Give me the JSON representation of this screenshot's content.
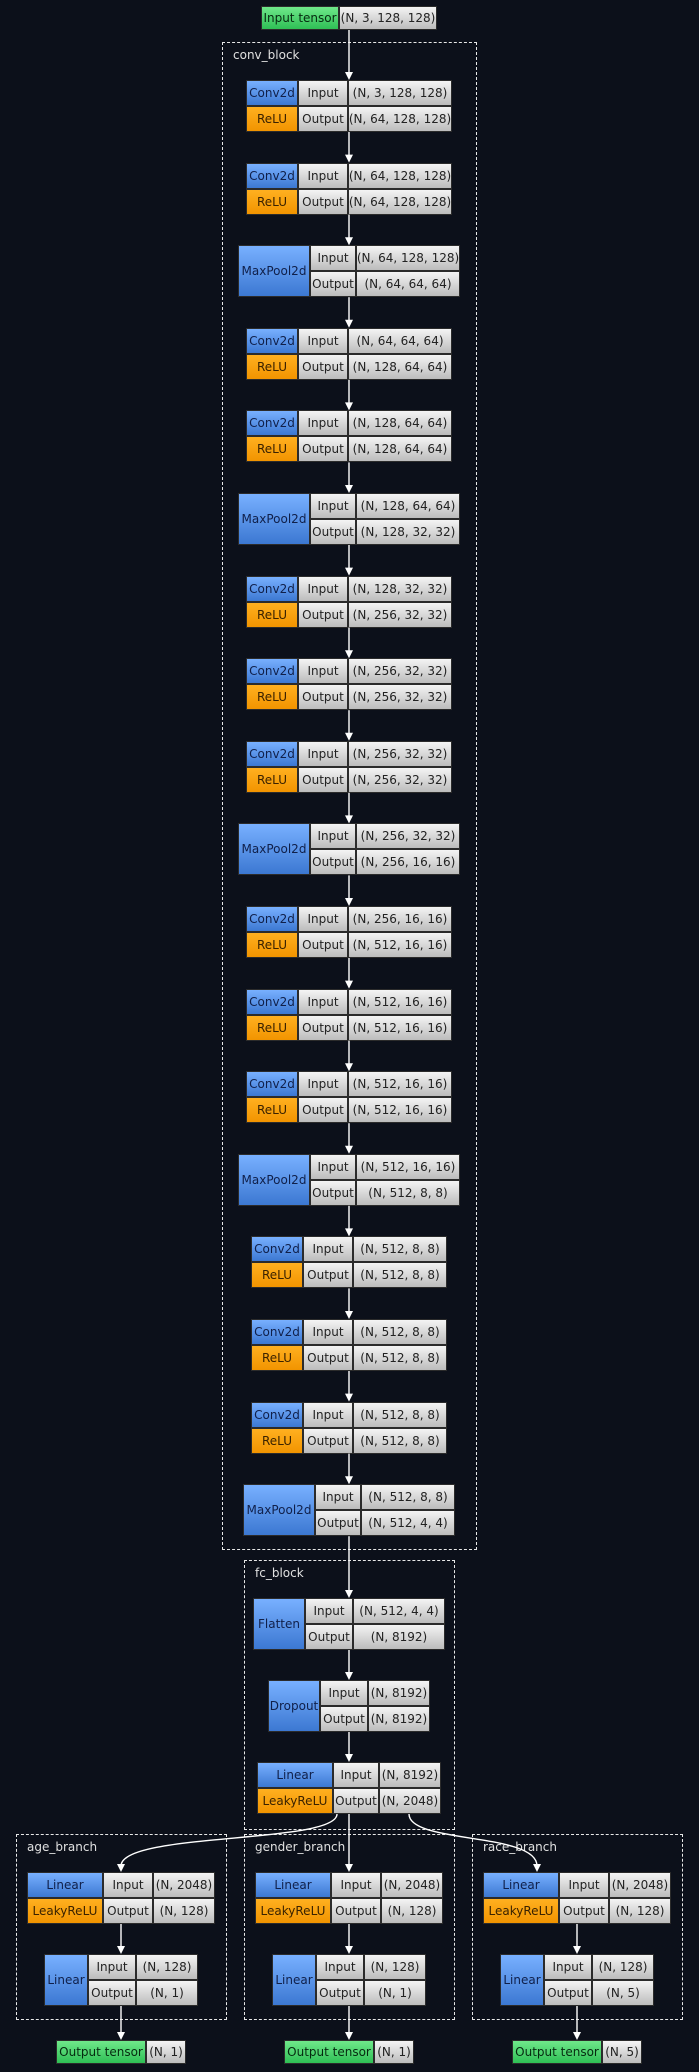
{
  "input_tensor": {
    "label": "Input tensor",
    "shape": "(N, 3, 128, 128)"
  },
  "clusters": {
    "conv_block": "conv_block",
    "fc_block": "fc_block",
    "age_branch": "age_branch",
    "gender_branch": "gender_branch",
    "race_branch": "race_branch"
  },
  "labels": {
    "input": "Input",
    "output": "Output"
  },
  "conv_layers": [
    {
      "layer": "Conv2d",
      "act": "ReLU",
      "in": "(N, 3, 128, 128)",
      "out": "(N, 64, 128, 128)"
    },
    {
      "layer": "Conv2d",
      "act": "ReLU",
      "in": "(N, 64, 128, 128)",
      "out": "(N, 64, 128, 128)"
    },
    {
      "layer": "MaxPool2d",
      "in": "(N, 64, 128, 128)",
      "out": "(N, 64, 64, 64)"
    },
    {
      "layer": "Conv2d",
      "act": "ReLU",
      "in": "(N, 64, 64, 64)",
      "out": "(N, 128, 64, 64)"
    },
    {
      "layer": "Conv2d",
      "act": "ReLU",
      "in": "(N, 128, 64, 64)",
      "out": "(N, 128, 64, 64)"
    },
    {
      "layer": "MaxPool2d",
      "in": "(N, 128, 64, 64)",
      "out": "(N, 128, 32, 32)"
    },
    {
      "layer": "Conv2d",
      "act": "ReLU",
      "in": "(N, 128, 32, 32)",
      "out": "(N, 256, 32, 32)"
    },
    {
      "layer": "Conv2d",
      "act": "ReLU",
      "in": "(N, 256, 32, 32)",
      "out": "(N, 256, 32, 32)"
    },
    {
      "layer": "Conv2d",
      "act": "ReLU",
      "in": "(N, 256, 32, 32)",
      "out": "(N, 256, 32, 32)"
    },
    {
      "layer": "MaxPool2d",
      "in": "(N, 256, 32, 32)",
      "out": "(N, 256, 16, 16)"
    },
    {
      "layer": "Conv2d",
      "act": "ReLU",
      "in": "(N, 256, 16, 16)",
      "out": "(N, 512, 16, 16)"
    },
    {
      "layer": "Conv2d",
      "act": "ReLU",
      "in": "(N, 512, 16, 16)",
      "out": "(N, 512, 16, 16)"
    },
    {
      "layer": "Conv2d",
      "act": "ReLU",
      "in": "(N, 512, 16, 16)",
      "out": "(N, 512, 16, 16)"
    },
    {
      "layer": "MaxPool2d",
      "in": "(N, 512, 16, 16)",
      "out": "(N, 512, 8, 8)"
    },
    {
      "layer": "Conv2d",
      "act": "ReLU",
      "in": "(N, 512, 8, 8)",
      "out": "(N, 512, 8, 8)"
    },
    {
      "layer": "Conv2d",
      "act": "ReLU",
      "in": "(N, 512, 8, 8)",
      "out": "(N, 512, 8, 8)"
    },
    {
      "layer": "Conv2d",
      "act": "ReLU",
      "in": "(N, 512, 8, 8)",
      "out": "(N, 512, 8, 8)"
    },
    {
      "layer": "MaxPool2d",
      "in": "(N, 512, 8, 8)",
      "out": "(N, 512, 4, 4)"
    }
  ],
  "fc_layers": [
    {
      "layer": "Flatten",
      "in": "(N, 512, 4, 4)",
      "out": "(N, 8192)"
    },
    {
      "layer": "Dropout",
      "in": "(N, 8192)",
      "out": "(N, 8192)"
    },
    {
      "layer": "Linear",
      "act": "LeakyReLU",
      "in": "(N, 8192)",
      "out": "(N, 2048)"
    }
  ],
  "branches": [
    {
      "name": "age_branch",
      "layers": [
        {
          "layer": "Linear",
          "act": "LeakyReLU",
          "in": "(N, 2048)",
          "out": "(N, 128)"
        },
        {
          "layer": "Linear",
          "in": "(N, 128)",
          "out": "(N, 1)"
        }
      ],
      "output": {
        "label": "Output tensor",
        "shape": "(N, 1)"
      }
    },
    {
      "name": "gender_branch",
      "layers": [
        {
          "layer": "Linear",
          "act": "LeakyReLU",
          "in": "(N, 2048)",
          "out": "(N, 128)"
        },
        {
          "layer": "Linear",
          "in": "(N, 128)",
          "out": "(N, 1)"
        }
      ],
      "output": {
        "label": "Output tensor",
        "shape": "(N, 1)"
      }
    },
    {
      "name": "race_branch",
      "layers": [
        {
          "layer": "Linear",
          "act": "LeakyReLU",
          "in": "(N, 2048)",
          "out": "(N, 128)"
        },
        {
          "layer": "Linear",
          "in": "(N, 128)",
          "out": "(N, 5)"
        }
      ],
      "output": {
        "label": "Output tensor",
        "shape": "(N, 5)"
      }
    }
  ],
  "colors": {
    "background": "#0c101a",
    "layer": "#4a88e0",
    "activation": "#f7a000",
    "tensor": "#3fd060",
    "io": "#d8d8d8",
    "edge": "#ffffff"
  }
}
